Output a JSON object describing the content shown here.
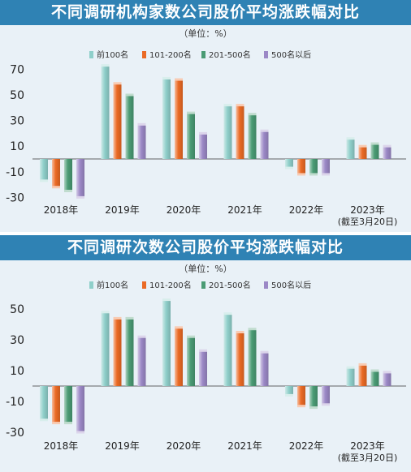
{
  "charts": [
    {
      "title": "不同调研机构家数公司股价平均涨跌幅对比",
      "unit": "（单位：%）"
    },
    {
      "title": "不同调研次数公司股价平均涨跌幅对比",
      "unit": "（单位：%）"
    }
  ],
  "colors": {
    "top100": "#8fcfca",
    "r101_200": "#ea6a25",
    "r201_500": "#4a9b74",
    "r500plus": "#9b88c6",
    "title_bg": "#2f82b4",
    "panel_bg": "#e9f1f7"
  },
  "chart_data": [
    {
      "type": "bar",
      "title": "不同调研机构家数公司股价平均涨跌幅对比",
      "unit": "（单位：%）",
      "categories": [
        "2018年",
        "2019年",
        "2020年",
        "2021年",
        "2022年",
        "2023年"
      ],
      "category_note": "(截至3月20日)",
      "series": [
        {
          "name": "前100名",
          "values": [
            -17,
            73,
            63,
            42,
            -7,
            16
          ]
        },
        {
          "name": "101-200名",
          "values": [
            -22,
            59,
            62,
            42,
            -12,
            10
          ]
        },
        {
          "name": "201-500名",
          "values": [
            -25,
            50,
            36,
            35,
            -12,
            12
          ]
        },
        {
          "name": "500名以后",
          "values": [
            -30,
            27,
            20,
            22,
            -12,
            10
          ]
        }
      ],
      "yticks": [
        70,
        50,
        30,
        10,
        -10,
        -30
      ],
      "ylim": [
        -35,
        78
      ],
      "grid": false,
      "legend": "top"
    },
    {
      "type": "bar",
      "title": "不同调研次数公司股价平均涨跌幅对比",
      "unit": "（单位：%）",
      "categories": [
        "2018年",
        "2019年",
        "2020年",
        "2021年",
        "2022年",
        "2023年"
      ],
      "category_note": "(截至3月20日)",
      "series": [
        {
          "name": "前100名",
          "values": [
            -22,
            48,
            56,
            47,
            -6,
            12
          ]
        },
        {
          "name": "101-200名",
          "values": [
            -24,
            44,
            38,
            35,
            -13,
            14
          ]
        },
        {
          "name": "201-500名",
          "values": [
            -24,
            44,
            32,
            37,
            -14,
            10
          ]
        },
        {
          "name": "500名以后",
          "values": [
            -30,
            32,
            23,
            22,
            -12,
            9
          ]
        }
      ],
      "yticks": [
        50,
        30,
        10,
        -10,
        -30
      ],
      "ylim": [
        -35,
        60
      ],
      "grid": false,
      "legend": "top"
    }
  ]
}
